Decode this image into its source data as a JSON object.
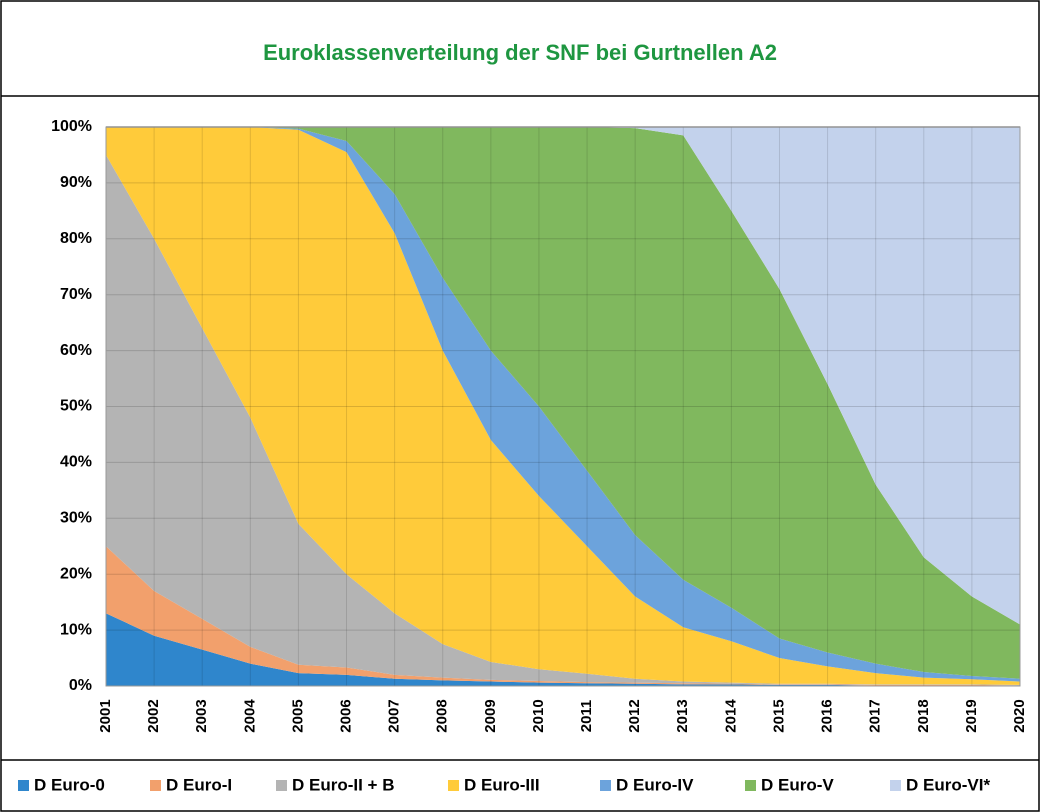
{
  "chart_data": {
    "type": "stacked_area",
    "title": "Euroklassenverteilung der SNF bei Gurtnellen A2",
    "categories": [
      "2001",
      "2002",
      "2003",
      "2004",
      "2005",
      "2006",
      "2007",
      "2008",
      "2009",
      "2010",
      "2011",
      "2012",
      "2013",
      "2014",
      "2015",
      "2016",
      "2017",
      "2018",
      "2019",
      "2020"
    ],
    "series": [
      {
        "name": "D Euro-0",
        "color": "#2f86cc",
        "values": [
          13,
          9,
          6.5,
          4,
          2.3,
          2,
          1.3,
          1,
          0.8,
          0.6,
          0.5,
          0.4,
          0.3,
          0.3,
          0.2,
          0.2,
          0.1,
          0.1,
          0.1,
          0.1
        ]
      },
      {
        "name": "D Euro-I",
        "color": "#f2a06c",
        "values": [
          12,
          8,
          5.5,
          3,
          1.5,
          1.3,
          0.7,
          0.5,
          0.3,
          0.3,
          0.2,
          0.2,
          0.2,
          0.1,
          0.1,
          0.1,
          0.1,
          0.1,
          0.1,
          0
        ]
      },
      {
        "name": "D Euro-II + B",
        "color": "#b4b4b4",
        "values": [
          70,
          63,
          52,
          41,
          25.2,
          16.7,
          11,
          6,
          3.2,
          2.1,
          1.5,
          0.7,
          0.3,
          0.2,
          0.1,
          0.1,
          0.1,
          0.1,
          0.1,
          0.1
        ]
      },
      {
        "name": "D Euro-III",
        "color": "#ffcb3a",
        "values": [
          5,
          20,
          36,
          52,
          70.5,
          75.5,
          68,
          52.5,
          39.7,
          31,
          22.8,
          14.7,
          9.7,
          7.4,
          4.6,
          3.1,
          2,
          1.2,
          0.9,
          0.6
        ]
      },
      {
        "name": "D Euro-IV",
        "color": "#6ca3dc",
        "values": [
          0,
          0,
          0,
          0,
          0.2,
          2,
          7,
          13,
          16,
          16,
          13.5,
          11,
          8.5,
          6,
          3.5,
          2.5,
          1.7,
          1,
          0.6,
          0.5
        ]
      },
      {
        "name": "D Euro-V",
        "color": "#80b85e",
        "values": [
          0,
          0,
          0,
          0,
          0.3,
          2.5,
          12,
          27,
          40,
          50,
          61.5,
          72.8,
          79.5,
          71,
          62.5,
          48,
          32,
          20.5,
          14.2,
          9.7
        ]
      },
      {
        "name": "D Euro-VI*",
        "color": "#c3d2ec",
        "values": [
          0,
          0,
          0,
          0,
          0,
          0,
          0,
          0,
          0,
          0,
          0,
          0.2,
          1.5,
          15,
          29,
          46,
          64,
          77,
          84,
          89
        ]
      }
    ],
    "ylim": [
      0,
      100
    ],
    "yticks": [
      {
        "value": 0,
        "label": "0%"
      },
      {
        "value": 10,
        "label": "10%"
      },
      {
        "value": 20,
        "label": "20%"
      },
      {
        "value": 30,
        "label": "30%"
      },
      {
        "value": 40,
        "label": "40%"
      },
      {
        "value": 50,
        "label": "50%"
      },
      {
        "value": 60,
        "label": "60%"
      },
      {
        "value": 70,
        "label": "70%"
      },
      {
        "value": 80,
        "label": "80%"
      },
      {
        "value": 90,
        "label": "90%"
      },
      {
        "value": 100,
        "label": "100%"
      }
    ],
    "grid": true
  }
}
